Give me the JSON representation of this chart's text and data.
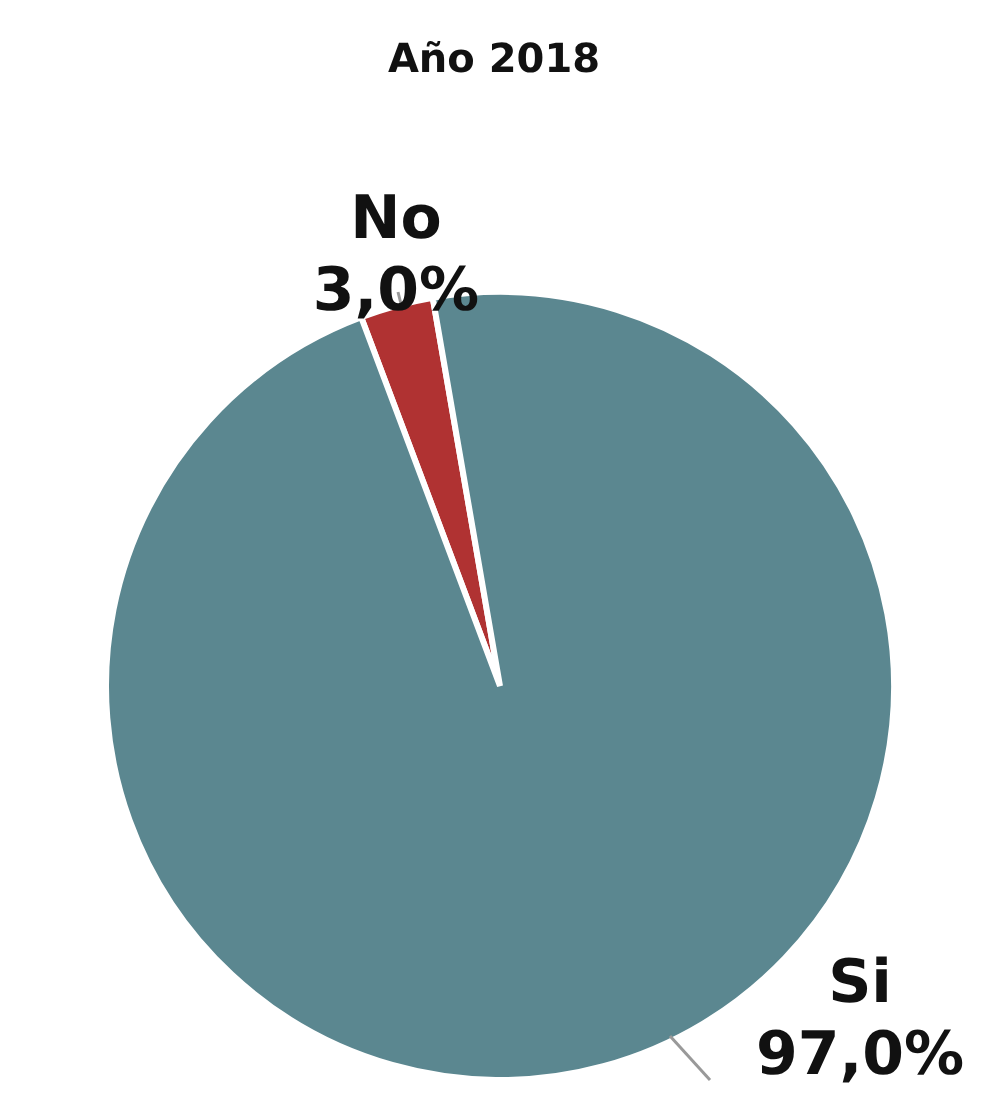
{
  "chart_data": {
    "type": "pie",
    "title": "Año 2018",
    "categories": [
      "No",
      "Si"
    ],
    "values": [
      3.0,
      97.0
    ],
    "value_labels": [
      "3,0%",
      "97,0%"
    ],
    "colors": [
      "#b03232",
      "#5b8790"
    ],
    "legend": false
  }
}
